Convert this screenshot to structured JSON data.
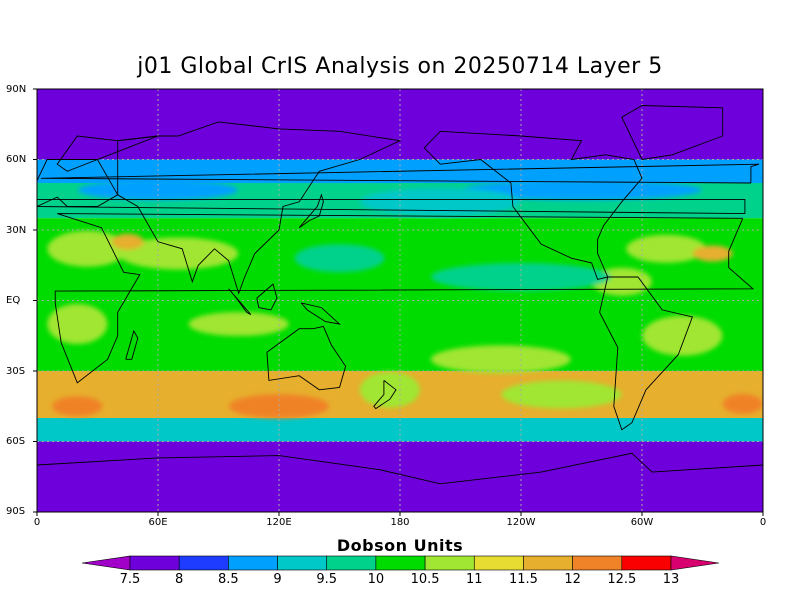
{
  "title": "j01 Global CrIS Analysis on 20250714 Layer 5",
  "colorbar_title": "Dobson Units",
  "lat_labels": [
    "90N",
    "60N",
    "30N",
    "EQ",
    "30S",
    "60S",
    "90S"
  ],
  "lon_labels": [
    "0",
    "60E",
    "120E",
    "180",
    "120W",
    "60W",
    "0"
  ],
  "colorbar": {
    "levels": [
      "7.5",
      "8",
      "8.5",
      "9",
      "9.5",
      "10",
      "10.5",
      "11",
      "11.5",
      "12",
      "12.5",
      "13"
    ],
    "colors": [
      "#a000c8",
      "#6e00dc",
      "#1e3cff",
      "#00a0ff",
      "#00c8c8",
      "#00d28c",
      "#00dc00",
      "#a0e632",
      "#e6dc32",
      "#e6af2d",
      "#f08228",
      "#fa0000",
      "#d7006e"
    ]
  },
  "bands": [
    {
      "lat_range": [
        60,
        90
      ],
      "value": 7.5
    },
    {
      "lat_range": [
        50,
        60
      ],
      "value": 8.5
    },
    {
      "lat_range": [
        35,
        50
      ],
      "value": 9.5
    },
    {
      "lat_range": [
        -30,
        35
      ],
      "value": 10
    },
    {
      "lat_range": [
        -50,
        -30
      ],
      "value": 11.5
    },
    {
      "lat_range": [
        -60,
        -50
      ],
      "value": 9
    },
    {
      "lat_range": [
        -90,
        -60
      ],
      "value": 7.5
    }
  ],
  "colors": {
    "grid": "#aaaaaa",
    "coast": "#000000"
  }
}
